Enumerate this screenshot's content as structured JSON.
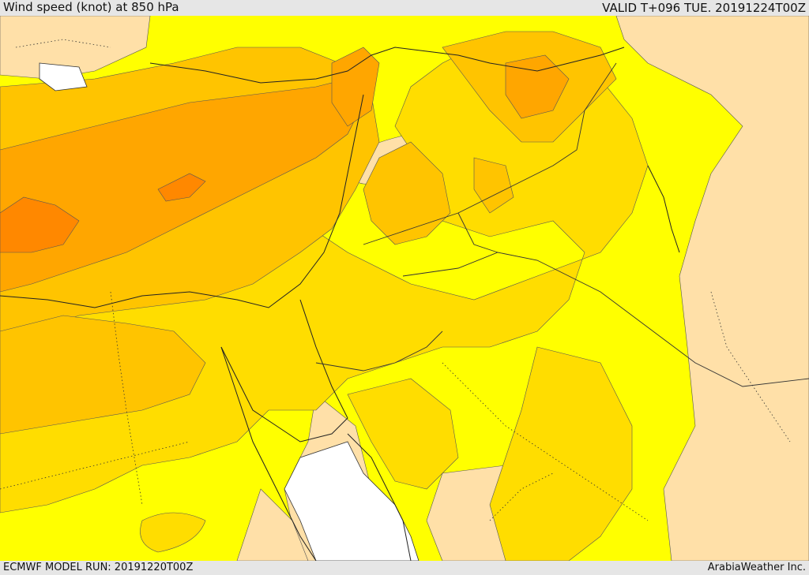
{
  "header": {
    "title": "Wind speed (knot) at 850 hPa",
    "valid": "VALID T+096 TUE. 20191224T00Z"
  },
  "footer": {
    "model_run": "ECMWF MODEL RUN: 20191220T00Z",
    "credit": "ArabiaWeather Inc."
  },
  "colors": {
    "band_lightest": "#ffe0a8",
    "band_yellow": "#ffff00",
    "band_gold": "#ffdd00",
    "band_amber": "#ffc400",
    "band_orange": "#ffa600",
    "band_deep_orange": "#ff8800",
    "sea_white": "#ffffff"
  }
}
